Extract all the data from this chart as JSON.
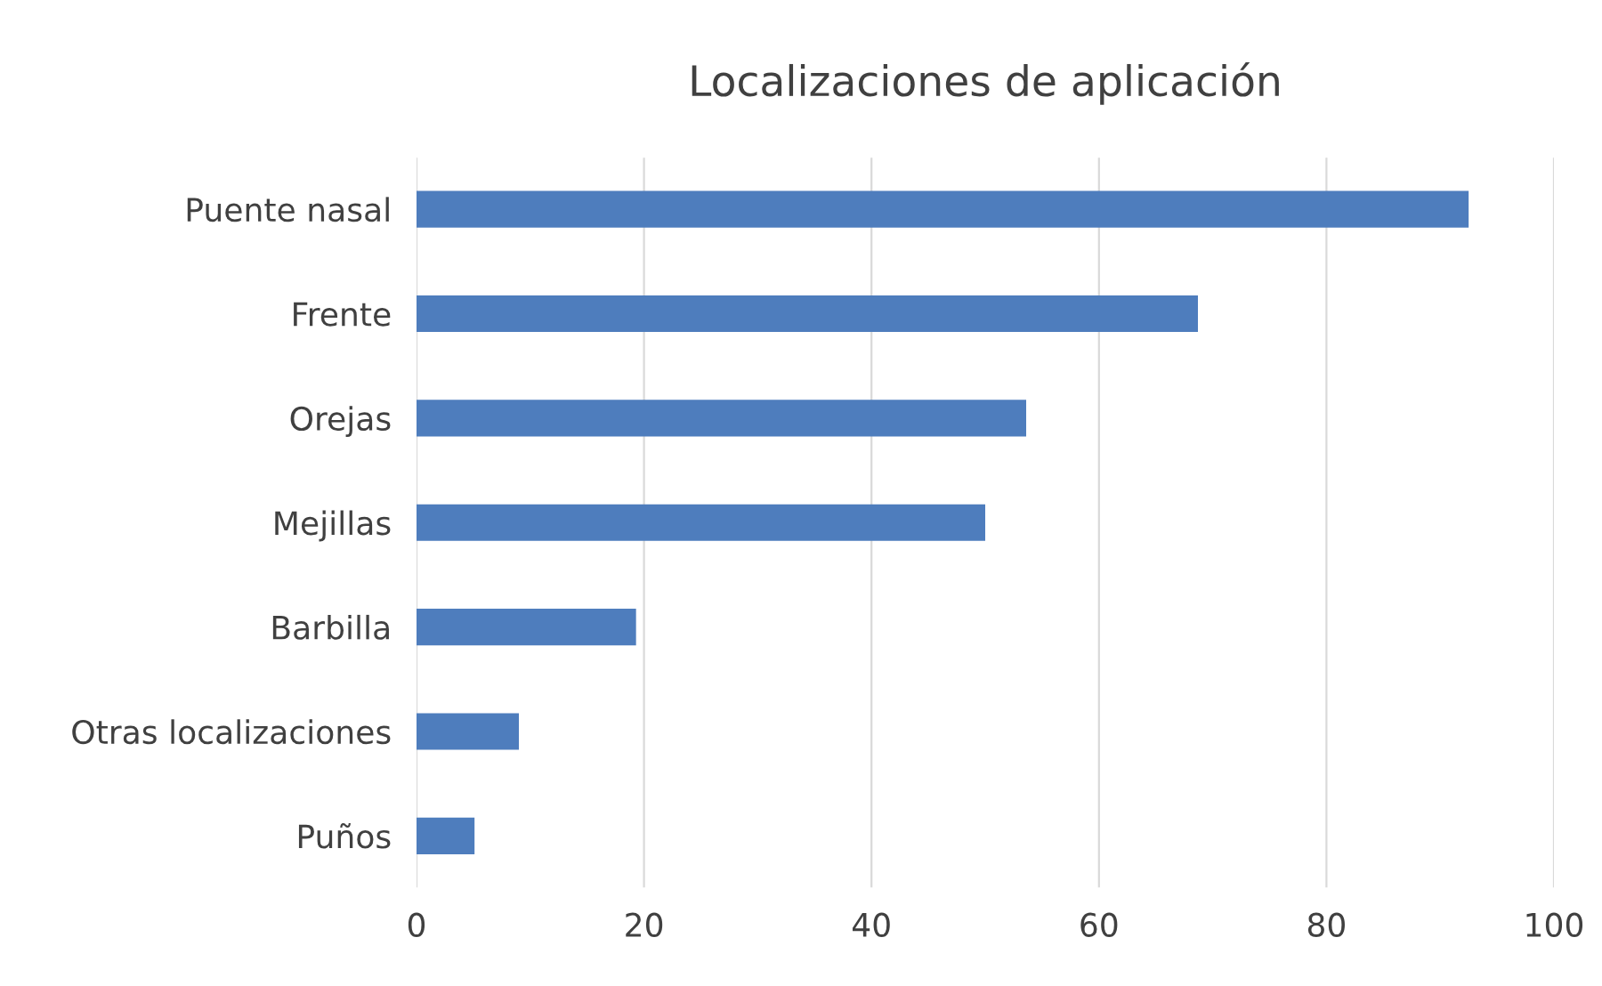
{
  "chart_data": {
    "type": "bar",
    "orientation": "horizontal",
    "title": "Localizaciones de aplicación",
    "categories": [
      "Puente nasal",
      "Frente",
      "Orejas",
      "Mejillas",
      "Barbilla",
      "Otras localizaciones",
      "Puños"
    ],
    "values": [
      92.5,
      68.7,
      53.6,
      50.0,
      19.3,
      9.0,
      5.1
    ],
    "color": "#4e7dbd",
    "xlim": [
      0,
      100
    ],
    "xticks": [
      0,
      20,
      40,
      60,
      80,
      100
    ],
    "grid": "x",
    "legend": false
  }
}
